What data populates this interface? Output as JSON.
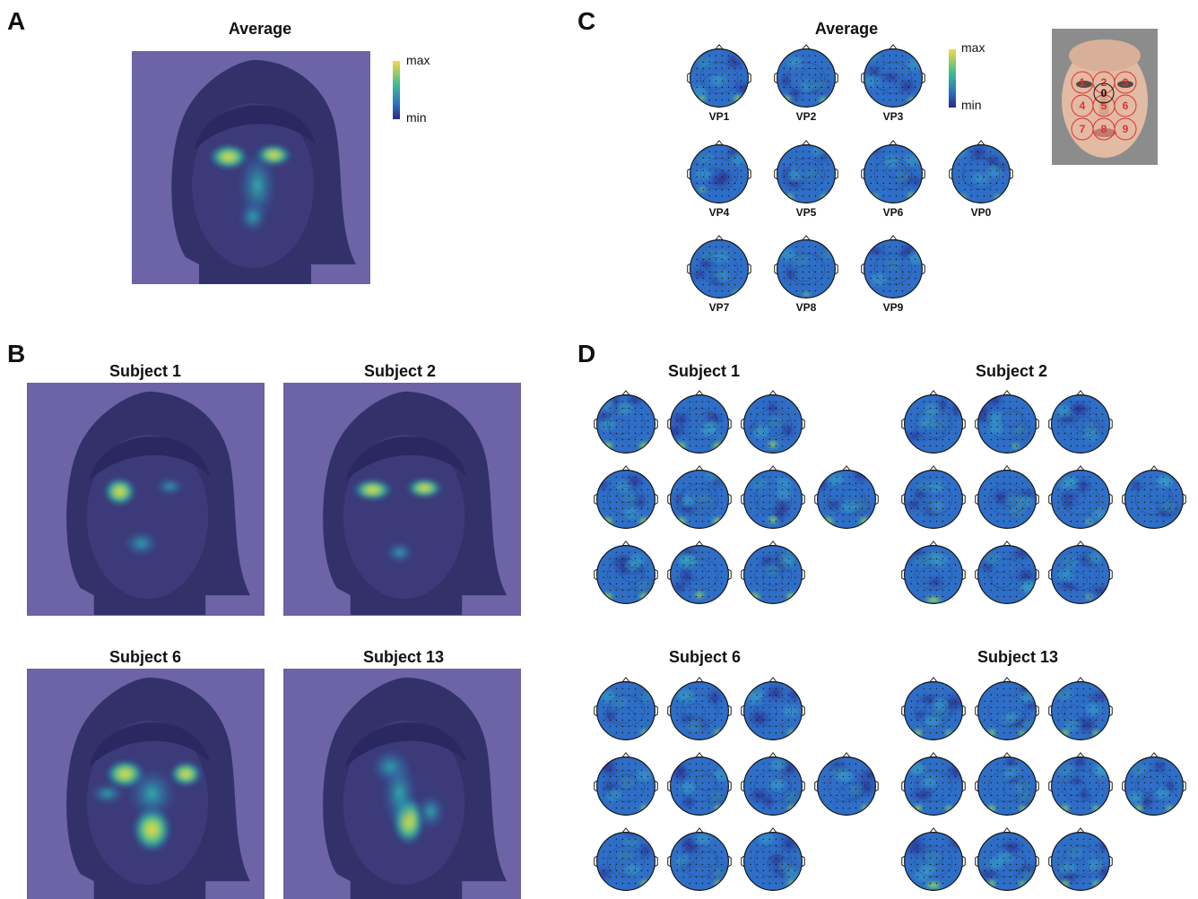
{
  "panels": {
    "A": {
      "letter": "A",
      "title": "Average",
      "colorbar": {
        "max": "max",
        "min": "min"
      }
    },
    "B": {
      "letter": "B",
      "subjects": [
        "Subject 1",
        "Subject 2",
        "Subject 6",
        "Subject 13"
      ]
    },
    "C": {
      "letter": "C",
      "title": "Average",
      "colorbar": {
        "max": "max",
        "min": "min"
      },
      "labels": [
        "VP1",
        "VP2",
        "VP3",
        "VP4",
        "VP5",
        "VP6",
        "VP0",
        "VP7",
        "VP8",
        "VP9"
      ],
      "face_positions": [
        "1",
        "2",
        "3",
        "4",
        "5",
        "6",
        "7",
        "8",
        "9",
        "0"
      ]
    },
    "D": {
      "letter": "D",
      "subjects": [
        "Subject 1",
        "Subject 2",
        "Subject 6",
        "Subject 13"
      ]
    }
  },
  "colors": {
    "background_purple": "#6c64a6",
    "face_dark": "#33316a",
    "hot": "#f4d43a",
    "mid": "#27b8a0",
    "cool": "#2a57b8",
    "marker_red": "#e23030"
  },
  "icons": {
    "heatmap": "gaze-heatmap-image",
    "topomap": "eeg-scalp-topography",
    "face": "face-photo-with-fixation-grid"
  }
}
